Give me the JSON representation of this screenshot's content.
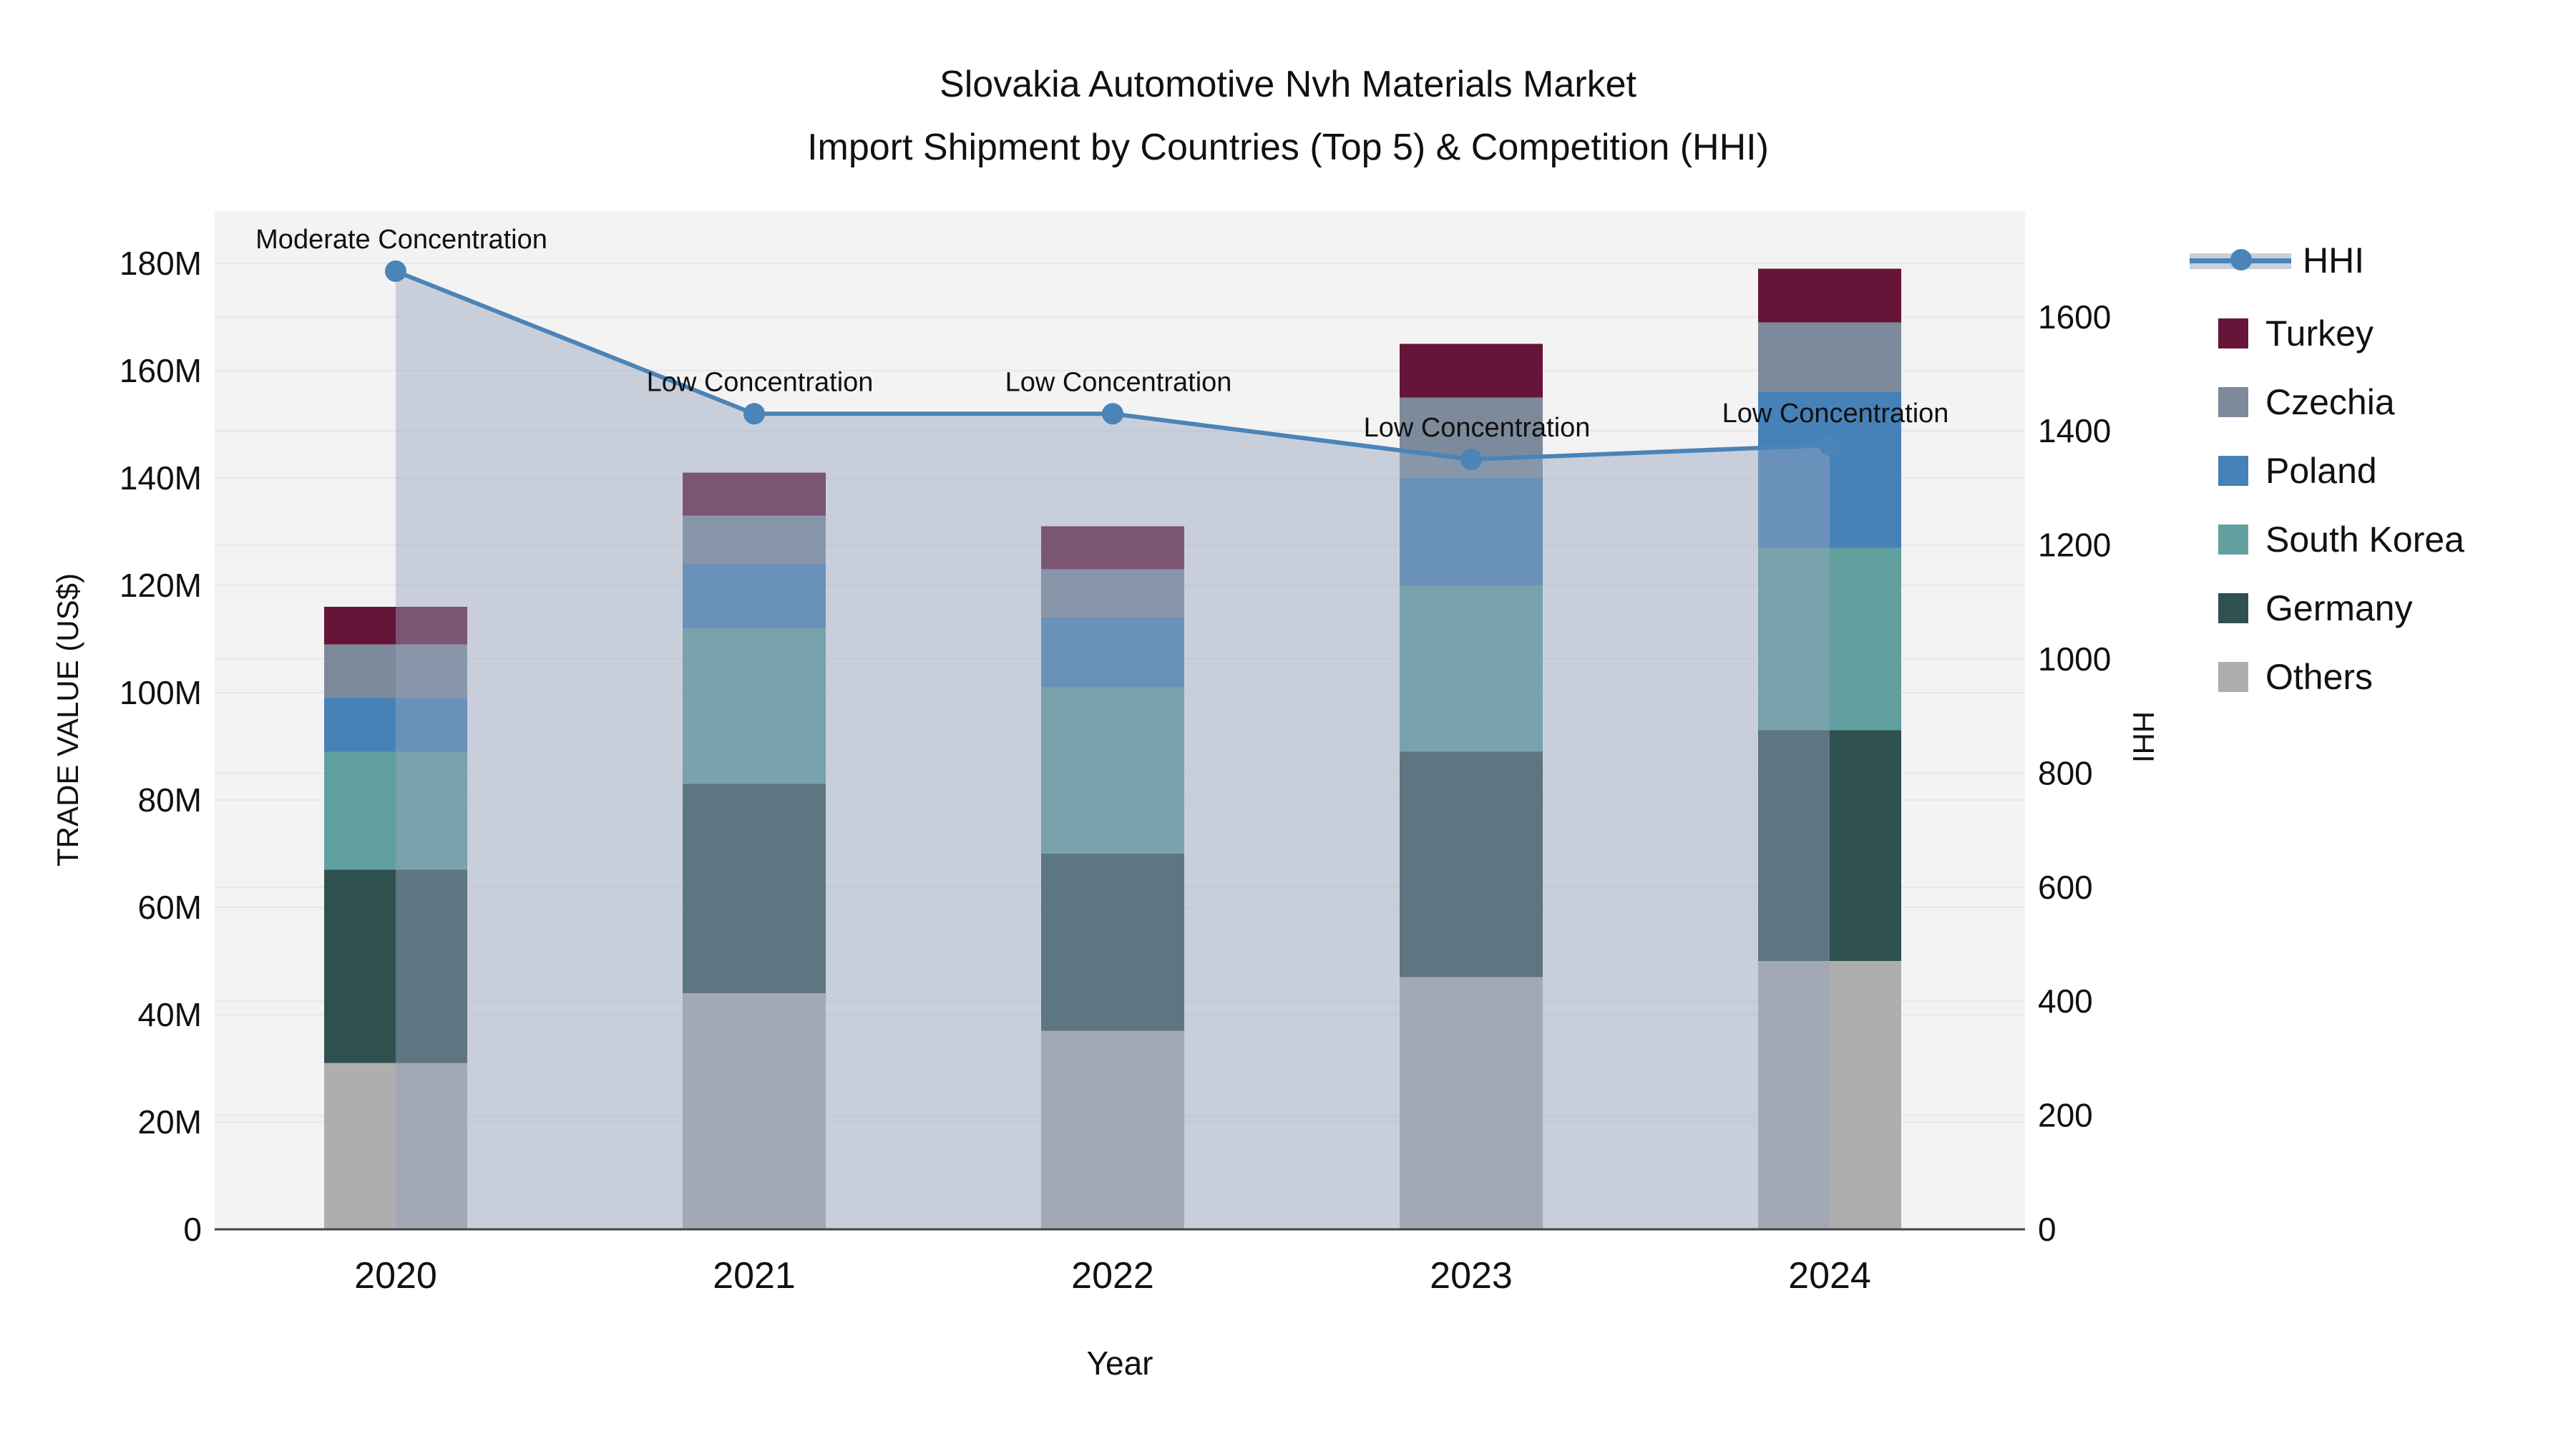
{
  "title": {
    "line1": "Slovakia Automotive Nvh Materials Market",
    "line2": "Import Shipment by Countries (Top 5) & Competition (HHI)"
  },
  "axes": {
    "left": {
      "title": "TRADE VALUE (US$)",
      "tick_labels": [
        "0",
        "20M",
        "40M",
        "60M",
        "80M",
        "100M",
        "120M",
        "140M",
        "160M",
        "180M"
      ],
      "tick_values": [
        0,
        20,
        40,
        60,
        80,
        100,
        120,
        140,
        160,
        180
      ]
    },
    "right": {
      "title": "HHI",
      "tick_labels": [
        "0",
        "200",
        "400",
        "600",
        "800",
        "1000",
        "1200",
        "1400",
        "1600"
      ],
      "tick_values": [
        0,
        200,
        400,
        600,
        800,
        1000,
        1200,
        1400,
        1600
      ]
    },
    "x": {
      "title": "Year",
      "categories": [
        "2020",
        "2021",
        "2022",
        "2023",
        "2024"
      ]
    }
  },
  "legend": {
    "items": [
      {
        "key": "hhi",
        "label": "HHI",
        "type": "line",
        "color": "#4a84b8",
        "band_color": "#c8cfdc"
      },
      {
        "key": "turkey",
        "label": "Turkey",
        "type": "swatch",
        "color": "#661538"
      },
      {
        "key": "czechia",
        "label": "Czechia",
        "type": "swatch",
        "color": "#7d8a9b"
      },
      {
        "key": "poland",
        "label": "Poland",
        "type": "swatch",
        "color": "#4681b8"
      },
      {
        "key": "south-korea",
        "label": "South Korea",
        "type": "swatch",
        "color": "#62a0a0"
      },
      {
        "key": "germany",
        "label": "Germany",
        "type": "swatch",
        "color": "#2f5150"
      },
      {
        "key": "others",
        "label": "Others",
        "type": "swatch",
        "color": "#aeaeae"
      }
    ]
  },
  "chart_data": {
    "type": "bar",
    "stacked": true,
    "categories": [
      "2020",
      "2021",
      "2022",
      "2023",
      "2024"
    ],
    "value_unit": "M US$",
    "series": [
      {
        "name": "Others",
        "color": "#aeaeae",
        "values": [
          31,
          44,
          37,
          47,
          50
        ]
      },
      {
        "name": "Germany",
        "color": "#2f5150",
        "values": [
          36,
          39,
          33,
          42,
          43
        ]
      },
      {
        "name": "South Korea",
        "color": "#62a0a0",
        "values": [
          22,
          29,
          31,
          31,
          34
        ]
      },
      {
        "name": "Poland",
        "color": "#4681b8",
        "values": [
          10,
          12,
          13,
          20,
          29
        ]
      },
      {
        "name": "Czechia",
        "color": "#7d8a9b",
        "values": [
          10,
          9,
          9,
          15,
          13
        ]
      },
      {
        "name": "Turkey",
        "color": "#661538",
        "values": [
          7,
          8,
          8,
          10,
          10
        ]
      }
    ],
    "bar_totals": [
      116,
      141,
      131,
      165,
      179
    ],
    "line_series": {
      "name": "HHI",
      "axis": "right",
      "color": "#4a84b8",
      "area_fill": "rgba(151,164,189,0.45)",
      "values": [
        1680,
        1430,
        1430,
        1350,
        1375
      ]
    },
    "annotations": [
      {
        "category": "2020",
        "text": "Moderate Concentration"
      },
      {
        "category": "2021",
        "text": "Low Concentration"
      },
      {
        "category": "2022",
        "text": "Low Concentration"
      },
      {
        "category": "2023",
        "text": "Low Concentration"
      },
      {
        "category": "2024",
        "text": "Low Concentration"
      }
    ],
    "xlabel": "Year",
    "ylabel": "TRADE VALUE (US$)",
    "y2label": "HHI",
    "ylim": [
      0,
      190
    ],
    "y2lim": [
      0,
      1790
    ],
    "grid": true,
    "legend_position": "right"
  },
  "style": {
    "plot_bg": "#f3f3f3",
    "grid_color": "#e7e7e7",
    "axis_line_color": "#444444",
    "text_color": "#111111"
  }
}
